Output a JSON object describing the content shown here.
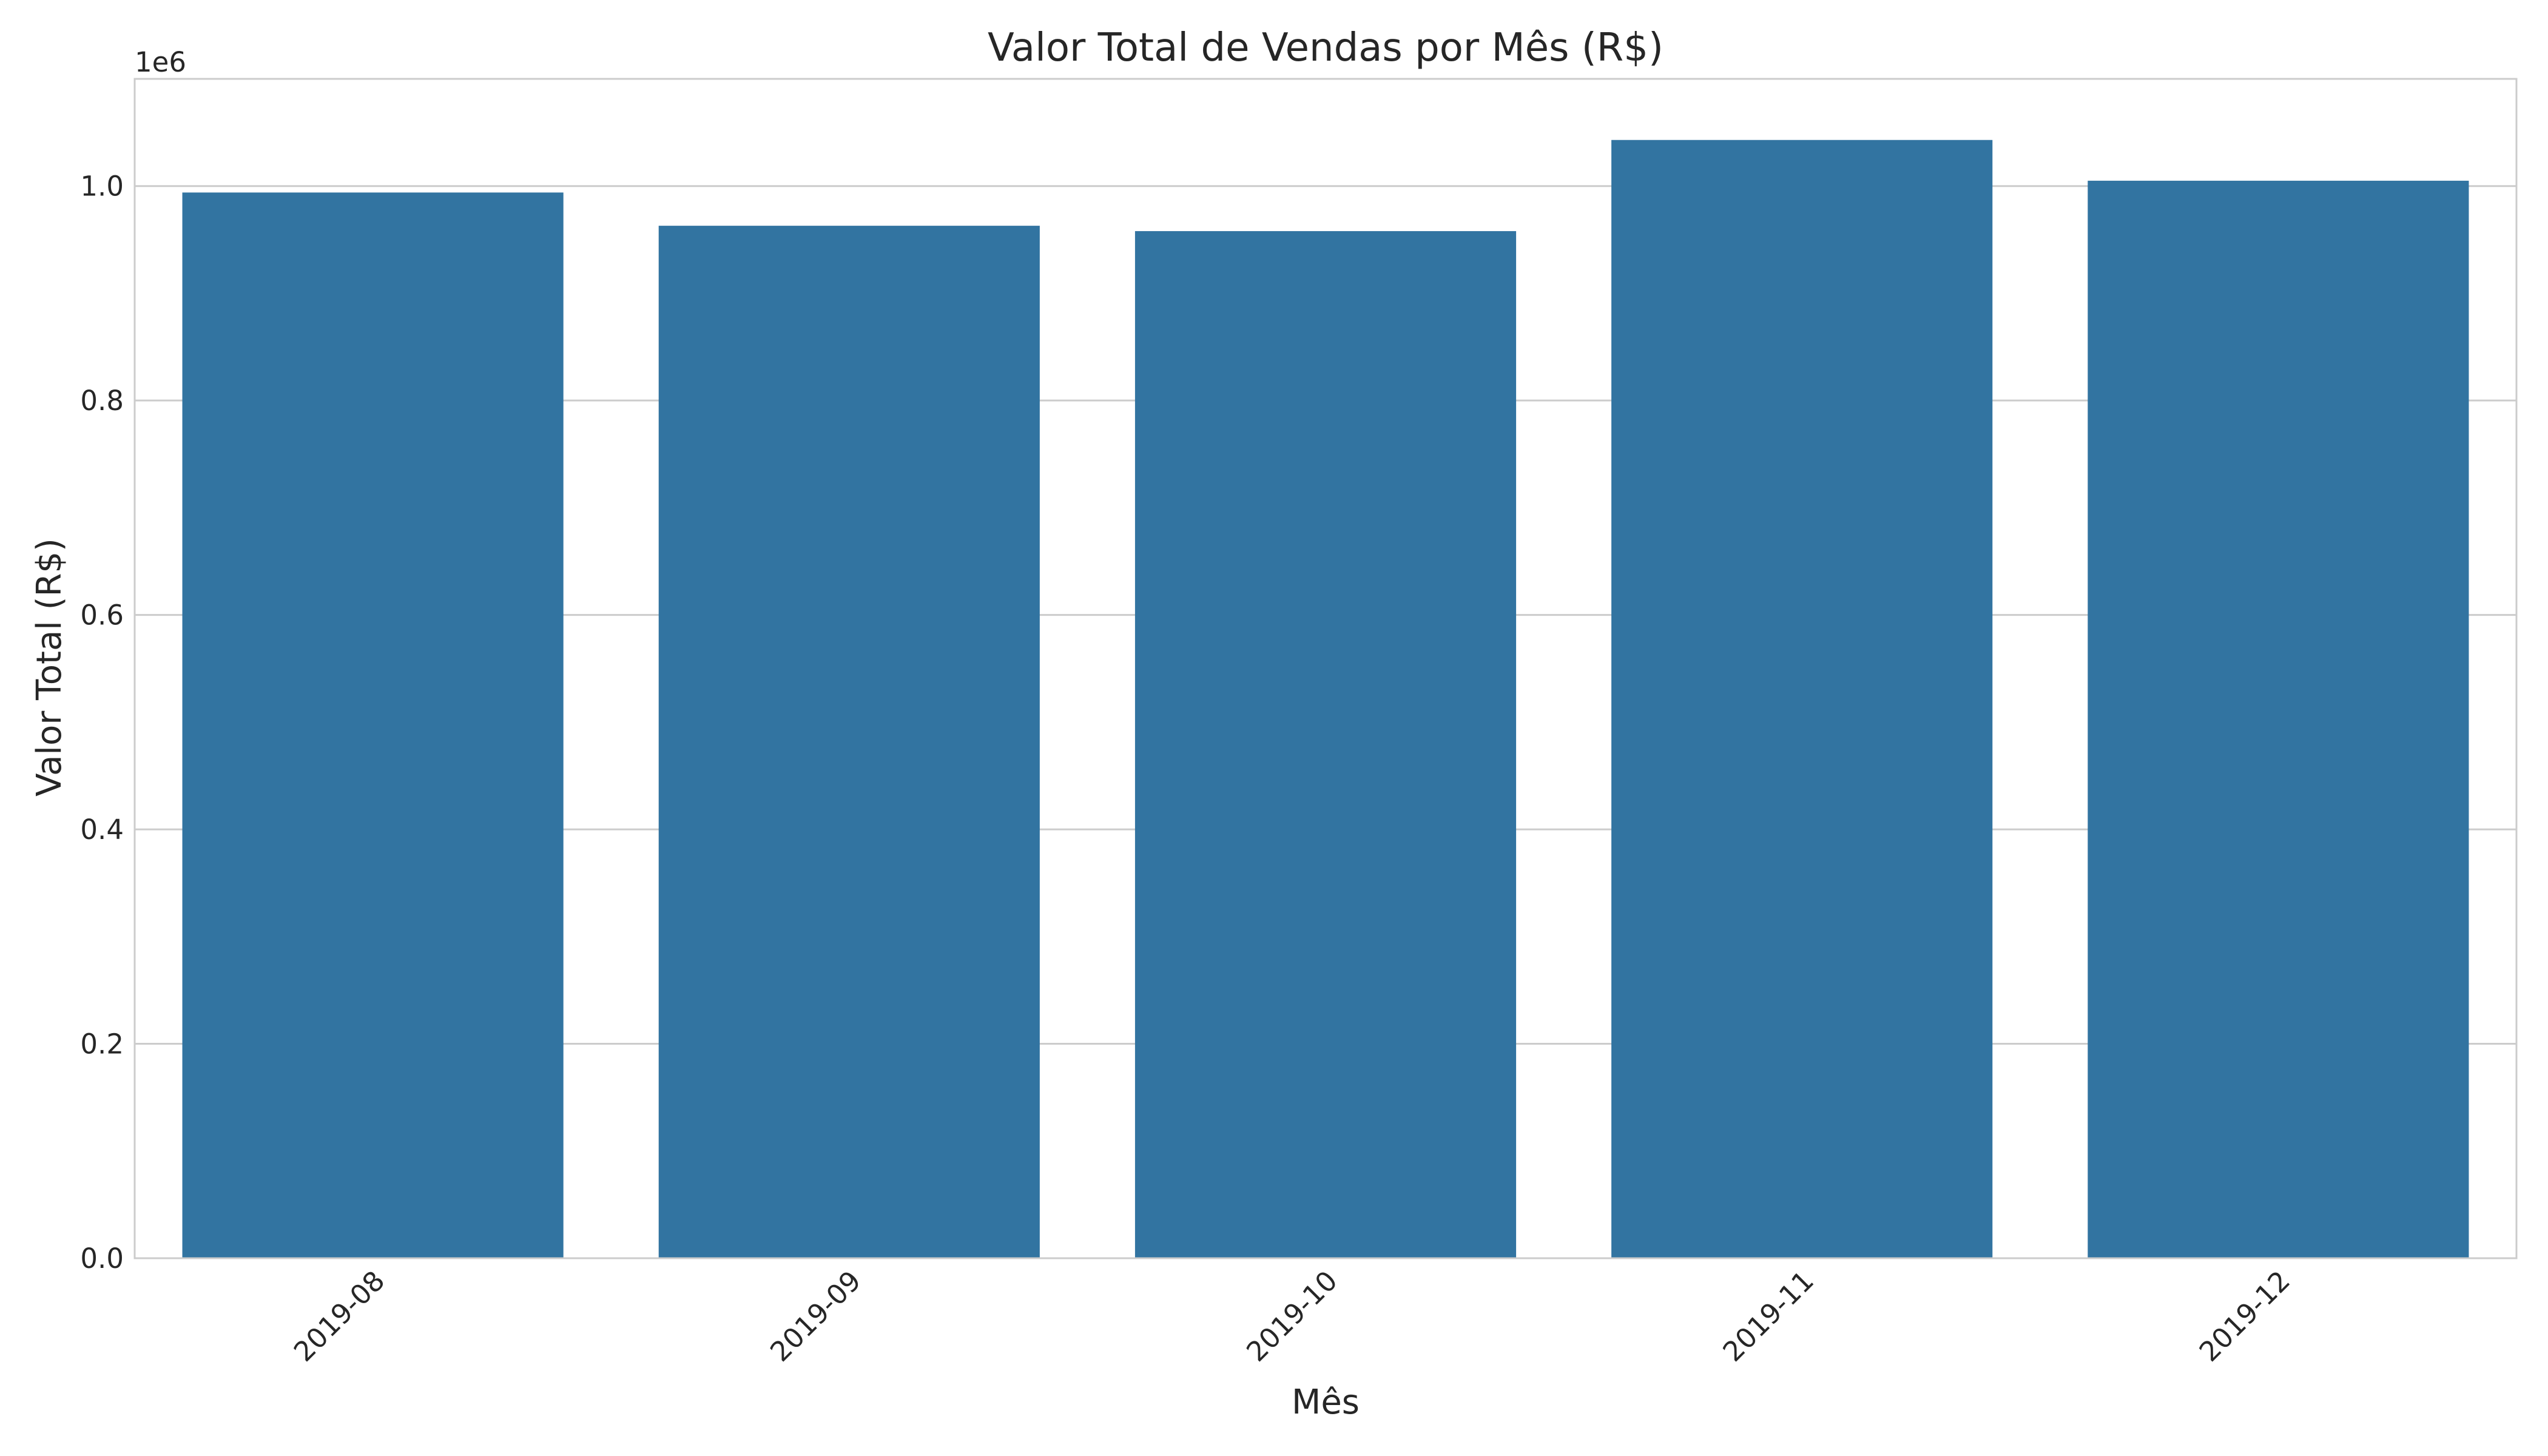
{
  "chart_data": {
    "type": "bar",
    "title": "Valor Total de Vendas por Mês (R$)",
    "xlabel": "Mês",
    "ylabel": "Valor Total (R$)",
    "y_offset_label": "1e6",
    "categories": [
      "2019-08",
      "2019-09",
      "2019-10",
      "2019-11",
      "2019-12"
    ],
    "values": [
      994000,
      963000,
      958000,
      1043000,
      1005000
    ],
    "ylim": [
      0,
      1100000
    ],
    "y_ticks": [
      0,
      200000,
      400000,
      600000,
      800000,
      1000000
    ],
    "y_tick_labels": [
      "0.0",
      "0.2",
      "0.4",
      "0.6",
      "0.8",
      "1.0"
    ],
    "grid": "horizontal",
    "x_tick_rotation": 45,
    "colors": {
      "bar": "#3274a1",
      "grid": "#cccccc",
      "frame": "#cccccc",
      "text": "#262626"
    }
  }
}
